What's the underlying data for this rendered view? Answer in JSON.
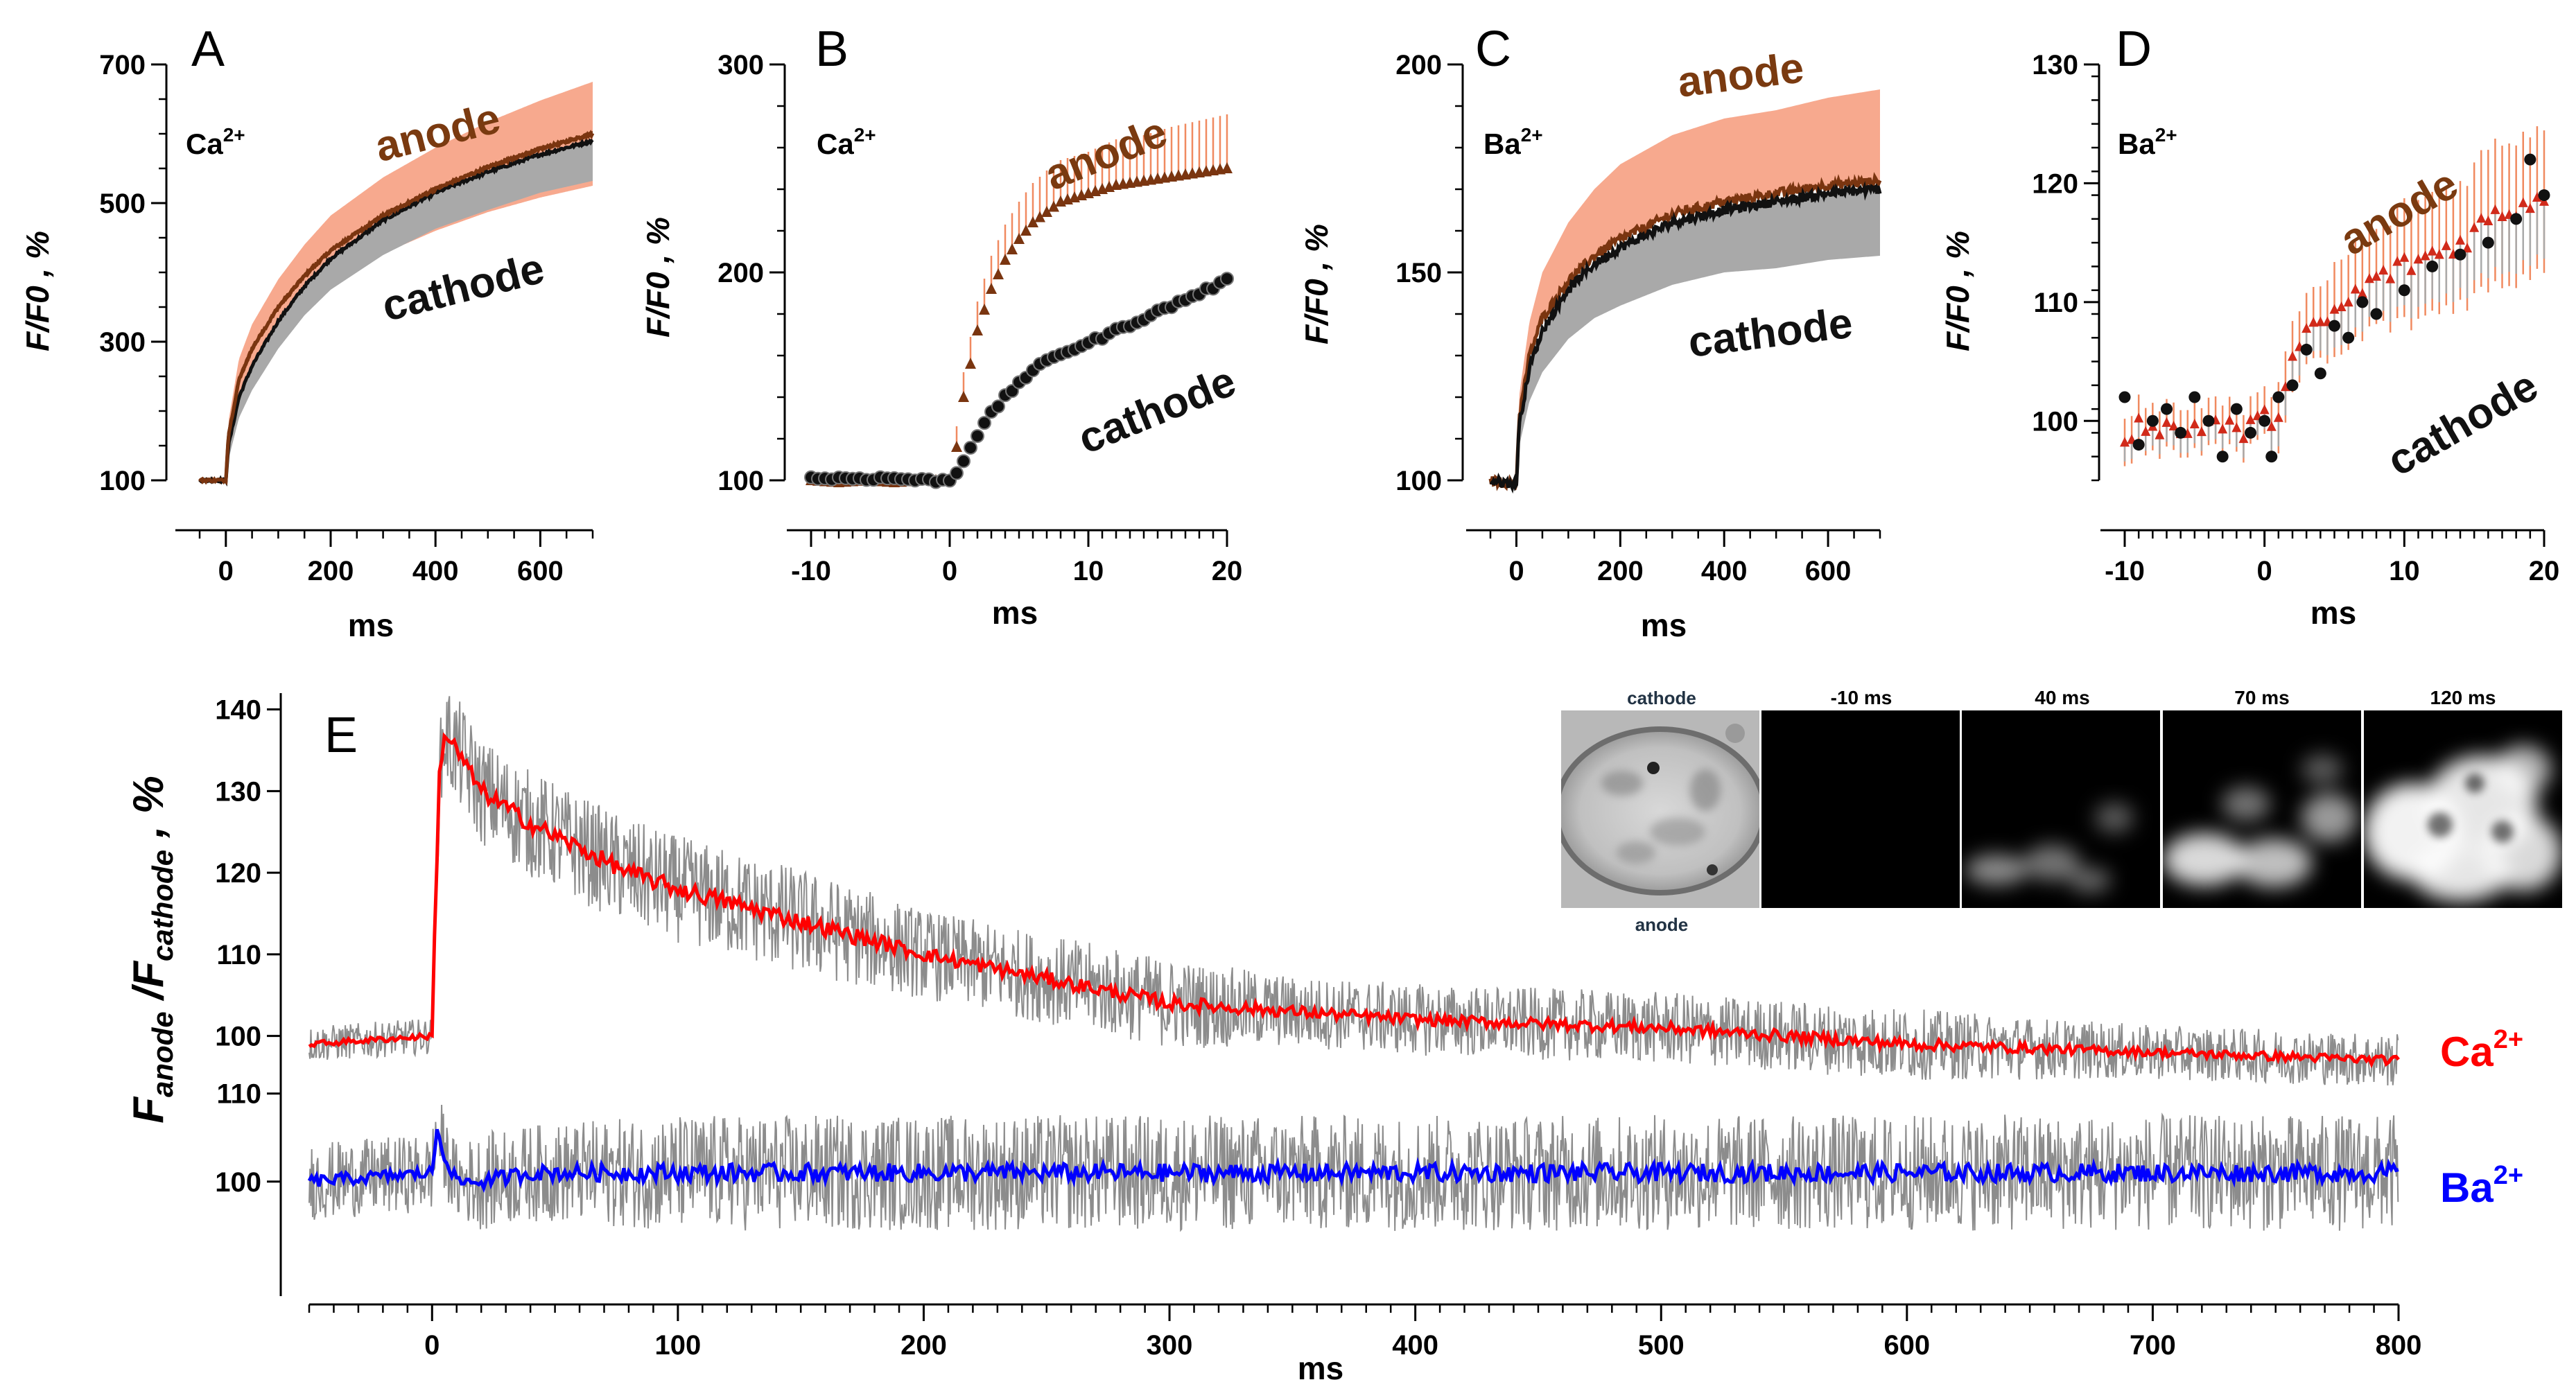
{
  "colors": {
    "anode_band": "#f7a98e",
    "anode_line": "#7a3510",
    "cathode_band": "#a9a9a9",
    "cathode_line": "#111111",
    "ratio_ca": "#ff0000",
    "ratio_ba": "#0000ff",
    "ratio_band": "#8c8c8c"
  },
  "chart_data": [
    {
      "id": "A",
      "type": "line",
      "letter": "A",
      "ion": "Ca",
      "ion_sup": "2+",
      "xlabel": "ms",
      "ylabel": "F/F0 , %",
      "xlim": [
        -50,
        700
      ],
      "ylim": [
        100,
        700
      ],
      "xticks": [
        0,
        200,
        400,
        600
      ],
      "yticks": [
        100,
        300,
        500,
        700
      ],
      "series": [
        {
          "name": "anode",
          "label": "anode",
          "x": [
            -50,
            0,
            5,
            25,
            50,
            100,
            150,
            200,
            300,
            400,
            500,
            600,
            700
          ],
          "y": [
            100,
            100,
            165,
            245,
            290,
            350,
            395,
            432,
            482,
            520,
            552,
            578,
            600
          ],
          "err": [
            0,
            0,
            20,
            30,
            35,
            40,
            45,
            50,
            55,
            60,
            65,
            70,
            75
          ]
        },
        {
          "name": "cathode",
          "label": "cathode",
          "x": [
            -50,
            0,
            5,
            25,
            50,
            100,
            150,
            200,
            300,
            400,
            500,
            600,
            700
          ],
          "y": [
            100,
            100,
            150,
            220,
            265,
            330,
            380,
            420,
            475,
            515,
            545,
            570,
            590
          ],
          "err": [
            0,
            0,
            20,
            30,
            35,
            40,
            42,
            45,
            50,
            52,
            55,
            55,
            58
          ]
        }
      ],
      "annotations": {
        "anode": "anode",
        "cathode": "cathode"
      }
    },
    {
      "id": "B",
      "type": "scatter",
      "letter": "B",
      "ion": "Ca",
      "ion_sup": "2+",
      "xlabel": "ms",
      "ylabel": "F/F0 , %",
      "xlim": [
        -10,
        20
      ],
      "ylim": [
        100,
        300
      ],
      "xticks": [
        -10,
        0,
        10,
        20
      ],
      "yticks": [
        100,
        200,
        300
      ],
      "series": [
        {
          "name": "anode",
          "label": "anode",
          "x": [
            -10,
            -8,
            -6,
            -4,
            -2,
            0,
            0.5,
            1,
            2,
            3,
            4,
            5,
            6,
            7,
            8,
            10,
            12,
            14,
            16,
            18,
            20
          ],
          "y": [
            100,
            99,
            100,
            99,
            100,
            100,
            116,
            140,
            172,
            192,
            206,
            216,
            224,
            229,
            234,
            238,
            242,
            244,
            246,
            248,
            250
          ],
          "err": [
            0,
            0,
            0,
            0,
            0,
            0,
            10,
            12,
            14,
            16,
            17,
            18,
            19,
            20,
            20,
            20,
            22,
            22,
            24,
            25,
            26
          ]
        },
        {
          "name": "cathode",
          "label": "cathode",
          "x": [
            -10,
            -8,
            -6,
            -4,
            -2,
            0,
            0.5,
            1,
            2,
            3,
            4,
            5,
            6,
            7,
            8,
            10,
            12,
            14,
            16,
            18,
            20
          ],
          "y": [
            101,
            101,
            101,
            101,
            100,
            100,
            104,
            110,
            122,
            132,
            140,
            147,
            153,
            157,
            161,
            166,
            172,
            178,
            184,
            190,
            196
          ],
          "err": [
            0,
            0,
            0,
            0,
            0,
            0,
            0,
            0,
            0,
            0,
            0,
            0,
            0,
            0,
            0,
            0,
            0,
            0,
            0,
            0,
            0
          ]
        }
      ],
      "annotations": {
        "anode": "anode",
        "cathode": "cathode"
      }
    },
    {
      "id": "C",
      "type": "line",
      "letter": "C",
      "ion": "Ba",
      "ion_sup": "2+",
      "xlabel": "ms",
      "ylabel": "F/F0 , %",
      "xlim": [
        -50,
        700
      ],
      "ylim": [
        100,
        200
      ],
      "xticks": [
        0,
        200,
        400,
        600
      ],
      "yticks": [
        100,
        150,
        200
      ],
      "series": [
        {
          "name": "anode",
          "label": "anode",
          "x": [
            -50,
            0,
            5,
            25,
            50,
            100,
            150,
            200,
            300,
            400,
            500,
            600,
            700
          ],
          "y": [
            100,
            99,
            115,
            130,
            139,
            148,
            154,
            158,
            164,
            167,
            169,
            171,
            172
          ],
          "err": [
            0,
            0,
            5,
            8,
            11,
            14,
            16,
            18,
            19,
            20,
            20,
            21,
            22
          ]
        },
        {
          "name": "cathode",
          "label": "cathode",
          "x": [
            -50,
            0,
            5,
            25,
            50,
            100,
            150,
            200,
            300,
            400,
            500,
            600,
            700
          ],
          "y": [
            100,
            99,
            113,
            127,
            136,
            146,
            152,
            156,
            162,
            165,
            167,
            169,
            170
          ],
          "err": [
            0,
            0,
            5,
            8,
            10,
            12,
            13,
            14,
            15,
            15,
            16,
            16,
            16
          ]
        }
      ],
      "annotations": {
        "anode": "anode",
        "cathode": "cathode"
      }
    },
    {
      "id": "D",
      "type": "scatter",
      "letter": "D",
      "ion": "Ba",
      "ion_sup": "2+",
      "xlabel": "ms",
      "ylabel": "F/F0 , %",
      "xlim": [
        -10,
        20
      ],
      "ylim": [
        95,
        130
      ],
      "xticks": [
        -10,
        0,
        10,
        20
      ],
      "yticks": [
        100,
        110,
        120,
        130
      ],
      "series": [
        {
          "name": "anode",
          "label": "anode",
          "x": [
            -10,
            -8,
            -6,
            -4,
            -2,
            0,
            1,
            2,
            3,
            4,
            5,
            6,
            8,
            10,
            12,
            14,
            16,
            18,
            20
          ],
          "y": [
            99,
            100,
            99,
            100,
            99,
            100,
            101,
            105,
            107,
            108,
            109,
            110,
            112,
            113,
            114,
            115,
            117,
            118,
            119
          ],
          "err": [
            2,
            2,
            2,
            2,
            2,
            2,
            3,
            3,
            3,
            3,
            4,
            4,
            4,
            5,
            5,
            5,
            6,
            6,
            6
          ]
        },
        {
          "name": "cathode",
          "label": "cathode",
          "x": [
            -10,
            -9,
            -8,
            -7,
            -6,
            -5,
            -4,
            -3,
            -2,
            -1,
            0,
            0.5,
            1,
            2,
            3,
            4,
            5,
            6,
            7,
            8,
            10,
            12,
            14,
            16,
            18,
            19,
            20
          ],
          "y": [
            102,
            98,
            100,
            101,
            99,
            102,
            100,
            97,
            101,
            99,
            100,
            97,
            102,
            103,
            106,
            104,
            108,
            107,
            110,
            109,
            111,
            113,
            114,
            115,
            117,
            122,
            119
          ],
          "err": []
        }
      ],
      "annotations": {
        "anode": "anode",
        "cathode": "cathode"
      }
    },
    {
      "id": "E",
      "type": "line",
      "letter": "E",
      "xlabel": "ms",
      "ylabel_main": "F",
      "ylabel_sub1": "anode",
      "ylabel_slash": " /F",
      "ylabel_sub2": "cathode",
      "ylabel_tail": " , %",
      "xlim": [
        -50,
        800
      ],
      "xticks": [
        0,
        100,
        200,
        300,
        400,
        500,
        600,
        700,
        800
      ],
      "top": {
        "ylim": [
          97,
          142
        ],
        "yticks": [
          100,
          110,
          120,
          130,
          140
        ],
        "series": {
          "name": "Ca",
          "label": "Ca",
          "sup": "2+",
          "x": [
            -50,
            0,
            1,
            3,
            5,
            10,
            20,
            40,
            60,
            80,
            100,
            150,
            200,
            250,
            300,
            350,
            400,
            500,
            600,
            700,
            800
          ],
          "y": [
            99,
            100,
            112,
            132,
            137,
            135,
            130,
            126,
            123,
            120,
            118,
            114,
            110,
            107,
            104,
            103,
            102,
            101,
            99,
            98,
            97
          ],
          "err": [
            2,
            2,
            3,
            5,
            6,
            6,
            6,
            6,
            6,
            6,
            6,
            6,
            5,
            5,
            5,
            4,
            4,
            4,
            4,
            3,
            3
          ]
        }
      },
      "bottom": {
        "ylim": [
          87,
          111
        ],
        "yticks": [
          100,
          110
        ],
        "series": {
          "name": "Ba",
          "label": "Ba",
          "sup": "2+",
          "x": [
            -50,
            0,
            2,
            5,
            10,
            20,
            40,
            100,
            200,
            300,
            400,
            500,
            600,
            700,
            800
          ],
          "y": [
            100,
            101,
            106,
            103,
            100,
            100,
            101,
            101,
            101,
            101,
            101,
            101,
            101,
            101,
            101
          ],
          "err": [
            4,
            4,
            5,
            4,
            4,
            5,
            5,
            6,
            6,
            6,
            6,
            6,
            6,
            6,
            6
          ]
        }
      }
    }
  ],
  "inset": {
    "labels": [
      "cathode",
      "-10 ms",
      "40 ms",
      "70 ms",
      "120 ms"
    ],
    "bottom_label": "anode"
  }
}
